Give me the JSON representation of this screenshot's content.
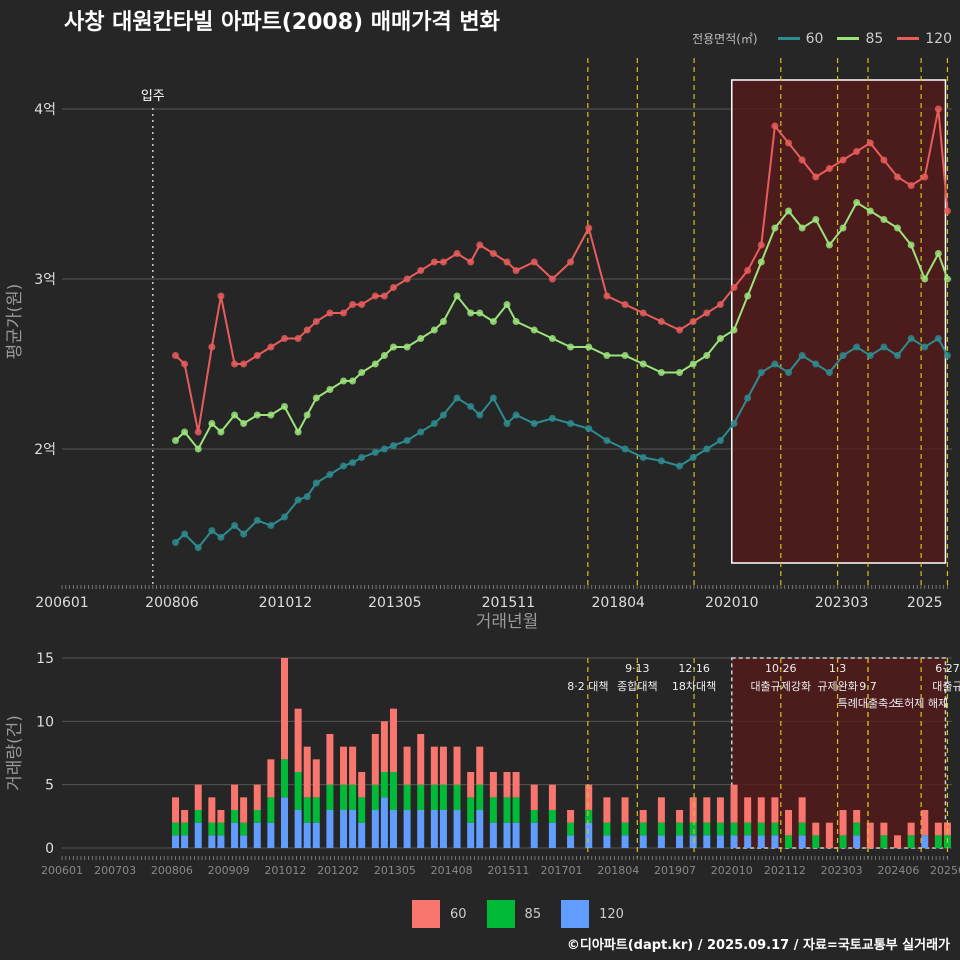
{
  "title": "사창 대원칸타빌 아파트(2008) 매매가격 변화",
  "footer": "©디아파트(dapt.kr) / 2025.09.17 / 자료=국토교통부 실거래가",
  "legend": {
    "title": "전용면적(㎡)",
    "items": [
      {
        "label": "60",
        "color": "#2e8b8f"
      },
      {
        "label": "85",
        "color": "#9be37a"
      },
      {
        "label": "120",
        "color": "#e85c5c"
      }
    ]
  },
  "bar_legend": {
    "items": [
      {
        "label": "60",
        "color": "#f8766d"
      },
      {
        "label": "85",
        "color": "#00ba38"
      },
      {
        "label": "120",
        "color": "#619cff"
      }
    ]
  },
  "chart_data": [
    {
      "type": "line",
      "title": "사창 대원칸타빌 아파트(2008) 매매가격 변화",
      "xlabel": "거래년월",
      "ylabel": "평균가(원)",
      "xlim": [
        2006.0,
        2025.6
      ],
      "ylim": [
        1.2,
        4.3
      ],
      "y_ticks": [
        {
          "v": 2,
          "label": "2억"
        },
        {
          "v": 3,
          "label": "3억"
        },
        {
          "v": 4,
          "label": "4억"
        }
      ],
      "x_ticks": [
        {
          "v": 2006.0,
          "label": "200601"
        },
        {
          "v": 2008.42,
          "label": "200806"
        },
        {
          "v": 2010.92,
          "label": "201012"
        },
        {
          "v": 2013.33,
          "label": "201305"
        },
        {
          "v": 2015.83,
          "label": "201511"
        },
        {
          "v": 2018.25,
          "label": "201804"
        },
        {
          "v": 2020.75,
          "label": "202010"
        },
        {
          "v": 2023.17,
          "label": "202303"
        },
        {
          "v": 2025.0,
          "label": "2025"
        }
      ],
      "annotations": [
        {
          "x": 2008.0,
          "label": "입주"
        }
      ],
      "policy_lines": [
        2017.58,
        2018.67,
        2019.92,
        2021.83,
        2023.08,
        2023.75,
        2024.92,
        2025.5
      ],
      "highlight_range": [
        2020.75,
        2025.5
      ],
      "series": [
        {
          "name": "60",
          "color": "#2e8b8f",
          "x": [
            2008.5,
            2008.7,
            2009.0,
            2009.3,
            2009.5,
            2009.8,
            2010.0,
            2010.3,
            2010.6,
            2010.9,
            2011.2,
            2011.4,
            2011.6,
            2011.9,
            2012.2,
            2012.4,
            2012.6,
            2012.9,
            2013.1,
            2013.3,
            2013.6,
            2013.9,
            2014.2,
            2014.4,
            2014.7,
            2015.0,
            2015.2,
            2015.5,
            2015.8,
            2016.0,
            2016.4,
            2016.8,
            2017.2,
            2017.6,
            2018.0,
            2018.4,
            2018.8,
            2019.2,
            2019.6,
            2019.9,
            2020.2,
            2020.5,
            2020.8,
            2021.1,
            2021.4,
            2021.7,
            2022.0,
            2022.3,
            2022.6,
            2022.9,
            2023.2,
            2023.5,
            2023.8,
            2024.1,
            2024.4,
            2024.7,
            2025.0,
            2025.3,
            2025.5
          ],
          "values": [
            1.45,
            1.5,
            1.42,
            1.52,
            1.48,
            1.55,
            1.5,
            1.58,
            1.55,
            1.6,
            1.7,
            1.72,
            1.8,
            1.85,
            1.9,
            1.92,
            1.95,
            1.98,
            2.0,
            2.02,
            2.05,
            2.1,
            2.15,
            2.2,
            2.3,
            2.25,
            2.2,
            2.3,
            2.15,
            2.2,
            2.15,
            2.18,
            2.15,
            2.12,
            2.05,
            2.0,
            1.95,
            1.93,
            1.9,
            1.95,
            2.0,
            2.05,
            2.15,
            2.3,
            2.45,
            2.5,
            2.45,
            2.55,
            2.5,
            2.45,
            2.55,
            2.6,
            2.55,
            2.6,
            2.55,
            2.65,
            2.6,
            2.65,
            2.55
          ]
        },
        {
          "name": "85",
          "color": "#9be37a",
          "x": [
            2008.5,
            2008.7,
            2009.0,
            2009.3,
            2009.5,
            2009.8,
            2010.0,
            2010.3,
            2010.6,
            2010.9,
            2011.2,
            2011.4,
            2011.6,
            2011.9,
            2012.2,
            2012.4,
            2012.6,
            2012.9,
            2013.1,
            2013.3,
            2013.6,
            2013.9,
            2014.2,
            2014.4,
            2014.7,
            2015.0,
            2015.2,
            2015.5,
            2015.8,
            2016.0,
            2016.4,
            2016.8,
            2017.2,
            2017.6,
            2018.0,
            2018.4,
            2018.8,
            2019.2,
            2019.6,
            2019.9,
            2020.2,
            2020.5,
            2020.8,
            2021.1,
            2021.4,
            2021.7,
            2022.0,
            2022.3,
            2022.6,
            2022.9,
            2023.2,
            2023.5,
            2023.8,
            2024.1,
            2024.4,
            2024.7,
            2025.0,
            2025.3,
            2025.5
          ],
          "values": [
            2.05,
            2.1,
            2.0,
            2.15,
            2.1,
            2.2,
            2.15,
            2.2,
            2.2,
            2.25,
            2.1,
            2.2,
            2.3,
            2.35,
            2.4,
            2.4,
            2.45,
            2.5,
            2.55,
            2.6,
            2.6,
            2.65,
            2.7,
            2.75,
            2.9,
            2.8,
            2.8,
            2.75,
            2.85,
            2.75,
            2.7,
            2.65,
            2.6,
            2.6,
            2.55,
            2.55,
            2.5,
            2.45,
            2.45,
            2.5,
            2.55,
            2.65,
            2.7,
            2.9,
            3.1,
            3.3,
            3.4,
            3.3,
            3.35,
            3.2,
            3.3,
            3.45,
            3.4,
            3.35,
            3.3,
            3.2,
            3.0,
            3.15,
            3.0
          ]
        },
        {
          "name": "120",
          "color": "#e85c5c",
          "x": [
            2008.5,
            2008.7,
            2009.0,
            2009.3,
            2009.5,
            2009.8,
            2010.0,
            2010.3,
            2010.6,
            2010.9,
            2011.2,
            2011.4,
            2011.6,
            2011.9,
            2012.2,
            2012.4,
            2012.6,
            2012.9,
            2013.1,
            2013.3,
            2013.6,
            2013.9,
            2014.2,
            2014.4,
            2014.7,
            2015.0,
            2015.2,
            2015.5,
            2015.8,
            2016.0,
            2016.4,
            2016.8,
            2017.2,
            2017.6,
            2018.0,
            2018.4,
            2018.8,
            2019.2,
            2019.6,
            2019.9,
            2020.2,
            2020.5,
            2020.8,
            2021.1,
            2021.4,
            2021.7,
            2022.0,
            2022.3,
            2022.6,
            2022.9,
            2023.2,
            2023.5,
            2023.8,
            2024.1,
            2024.4,
            2024.7,
            2025.0,
            2025.3,
            2025.5
          ],
          "values": [
            2.55,
            2.5,
            2.1,
            2.6,
            2.9,
            2.5,
            2.5,
            2.55,
            2.6,
            2.65,
            2.65,
            2.7,
            2.75,
            2.8,
            2.8,
            2.85,
            2.85,
            2.9,
            2.9,
            2.95,
            3.0,
            3.05,
            3.1,
            3.1,
            3.15,
            3.1,
            3.2,
            3.15,
            3.1,
            3.05,
            3.1,
            3.0,
            3.1,
            3.3,
            2.9,
            2.85,
            2.8,
            2.75,
            2.7,
            2.75,
            2.8,
            2.85,
            2.95,
            3.05,
            3.2,
            3.9,
            3.8,
            3.7,
            3.6,
            3.65,
            3.7,
            3.75,
            3.8,
            3.7,
            3.6,
            3.55,
            3.6,
            4.0,
            3.4
          ]
        }
      ]
    },
    {
      "type": "bar",
      "ylabel": "거래량(건)",
      "ylim": [
        0,
        15
      ],
      "y_ticks": [
        0,
        5,
        10,
        15
      ],
      "xlim": [
        2006.0,
        2025.6
      ],
      "x_ticks": [
        {
          "v": 2006.0,
          "label": "200601"
        },
        {
          "v": 2007.17,
          "label": "200703"
        },
        {
          "v": 2008.42,
          "label": "200806"
        },
        {
          "v": 2009.67,
          "label": "200909"
        },
        {
          "v": 2010.92,
          "label": "201012"
        },
        {
          "v": 2012.08,
          "label": "201202"
        },
        {
          "v": 2013.33,
          "label": "201305"
        },
        {
          "v": 2014.58,
          "label": "201408"
        },
        {
          "v": 2015.83,
          "label": "201511"
        },
        {
          "v": 2017.0,
          "label": "201701"
        },
        {
          "v": 2018.25,
          "label": "201804"
        },
        {
          "v": 2019.5,
          "label": "201907"
        },
        {
          "v": 2020.75,
          "label": "202010"
        },
        {
          "v": 2021.92,
          "label": "202112"
        },
        {
          "v": 2023.17,
          "label": "202303"
        },
        {
          "v": 2024.42,
          "label": "202406"
        },
        {
          "v": 2025.5,
          "label": "20250"
        }
      ],
      "policy_annotations": [
        {
          "x": 2017.58,
          "label1": "",
          "label2": "8·2 대책"
        },
        {
          "x": 2018.67,
          "label1": "9·13",
          "label2": "종합대책"
        },
        {
          "x": 2019.92,
          "label1": "12·16",
          "label2": "18차대책"
        },
        {
          "x": 2021.83,
          "label1": "10·26",
          "label2": "대출규제강화"
        },
        {
          "x": 2023.08,
          "label1": "1·3",
          "label2": "규제완화"
        },
        {
          "x": 2023.75,
          "label1": "",
          "label2": "9·7"
        },
        {
          "x": 2023.75,
          "label1": "",
          "label2": "특례대출축소"
        },
        {
          "x": 2024.92,
          "label1": "",
          "label2": "토허제 해제"
        },
        {
          "x": 2025.5,
          "label1": "6·27",
          "label2": "대출규"
        }
      ],
      "highlight_range": [
        2020.75,
        2025.5
      ],
      "categories": [
        "2008.5",
        "2008.7",
        "2009.0",
        "2009.3",
        "2009.5",
        "2009.8",
        "2010.0",
        "2010.3",
        "2010.6",
        "2010.9",
        "2011.2",
        "2011.4",
        "2011.6",
        "2011.9",
        "2012.2",
        "2012.4",
        "2012.6",
        "2012.9",
        "2013.1",
        "2013.3",
        "2013.6",
        "2013.9",
        "2014.2",
        "2014.4",
        "2014.7",
        "2015.0",
        "2015.2",
        "2015.5",
        "2015.8",
        "2016.0",
        "2016.4",
        "2016.8",
        "2017.2",
        "2017.6",
        "2018.0",
        "2018.4",
        "2018.8",
        "2019.2",
        "2019.6",
        "2019.9",
        "2020.2",
        "2020.5",
        "2020.8",
        "2021.1",
        "2021.4",
        "2021.7",
        "2022.0",
        "2022.3",
        "2022.6",
        "2022.9",
        "2023.2",
        "2023.5",
        "2023.8",
        "2024.1",
        "2024.4",
        "2024.7",
        "2025.0",
        "2025.3",
        "2025.5"
      ],
      "series": [
        {
          "name": "120",
          "color": "#619cff",
          "values": [
            1,
            1,
            2,
            1,
            1,
            2,
            1,
            2,
            2,
            4,
            3,
            2,
            2,
            3,
            3,
            3,
            2,
            3,
            4,
            3,
            3,
            3,
            3,
            3,
            3,
            2,
            3,
            2,
            2,
            2,
            2,
            2,
            1,
            2,
            1,
            1,
            1,
            1,
            1,
            1,
            1,
            1,
            1,
            1,
            1,
            1,
            0,
            1,
            0,
            0,
            0,
            1,
            0,
            0,
            0,
            0,
            1,
            0,
            0
          ]
        },
        {
          "name": "85",
          "color": "#00ba38",
          "values": [
            1,
            1,
            1,
            1,
            1,
            1,
            1,
            1,
            2,
            3,
            3,
            2,
            2,
            2,
            2,
            2,
            2,
            2,
            2,
            3,
            2,
            2,
            2,
            2,
            2,
            2,
            2,
            2,
            2,
            2,
            1,
            1,
            1,
            1,
            1,
            1,
            1,
            1,
            1,
            1,
            1,
            1,
            1,
            1,
            1,
            1,
            1,
            1,
            1,
            0,
            1,
            1,
            0,
            1,
            0,
            1,
            0,
            1,
            1
          ]
        },
        {
          "name": "60",
          "color": "#f8766d",
          "values": [
            2,
            1,
            2,
            2,
            1,
            2,
            2,
            2,
            3,
            8,
            5,
            4,
            3,
            4,
            3,
            3,
            2,
            4,
            4,
            5,
            3,
            4,
            3,
            3,
            3,
            2,
            3,
            2,
            2,
            2,
            2,
            2,
            1,
            2,
            2,
            2,
            1,
            2,
            1,
            2,
            2,
            2,
            3,
            2,
            2,
            2,
            2,
            2,
            1,
            2,
            2,
            1,
            2,
            1,
            1,
            1,
            2,
            1,
            1
          ]
        }
      ]
    }
  ]
}
